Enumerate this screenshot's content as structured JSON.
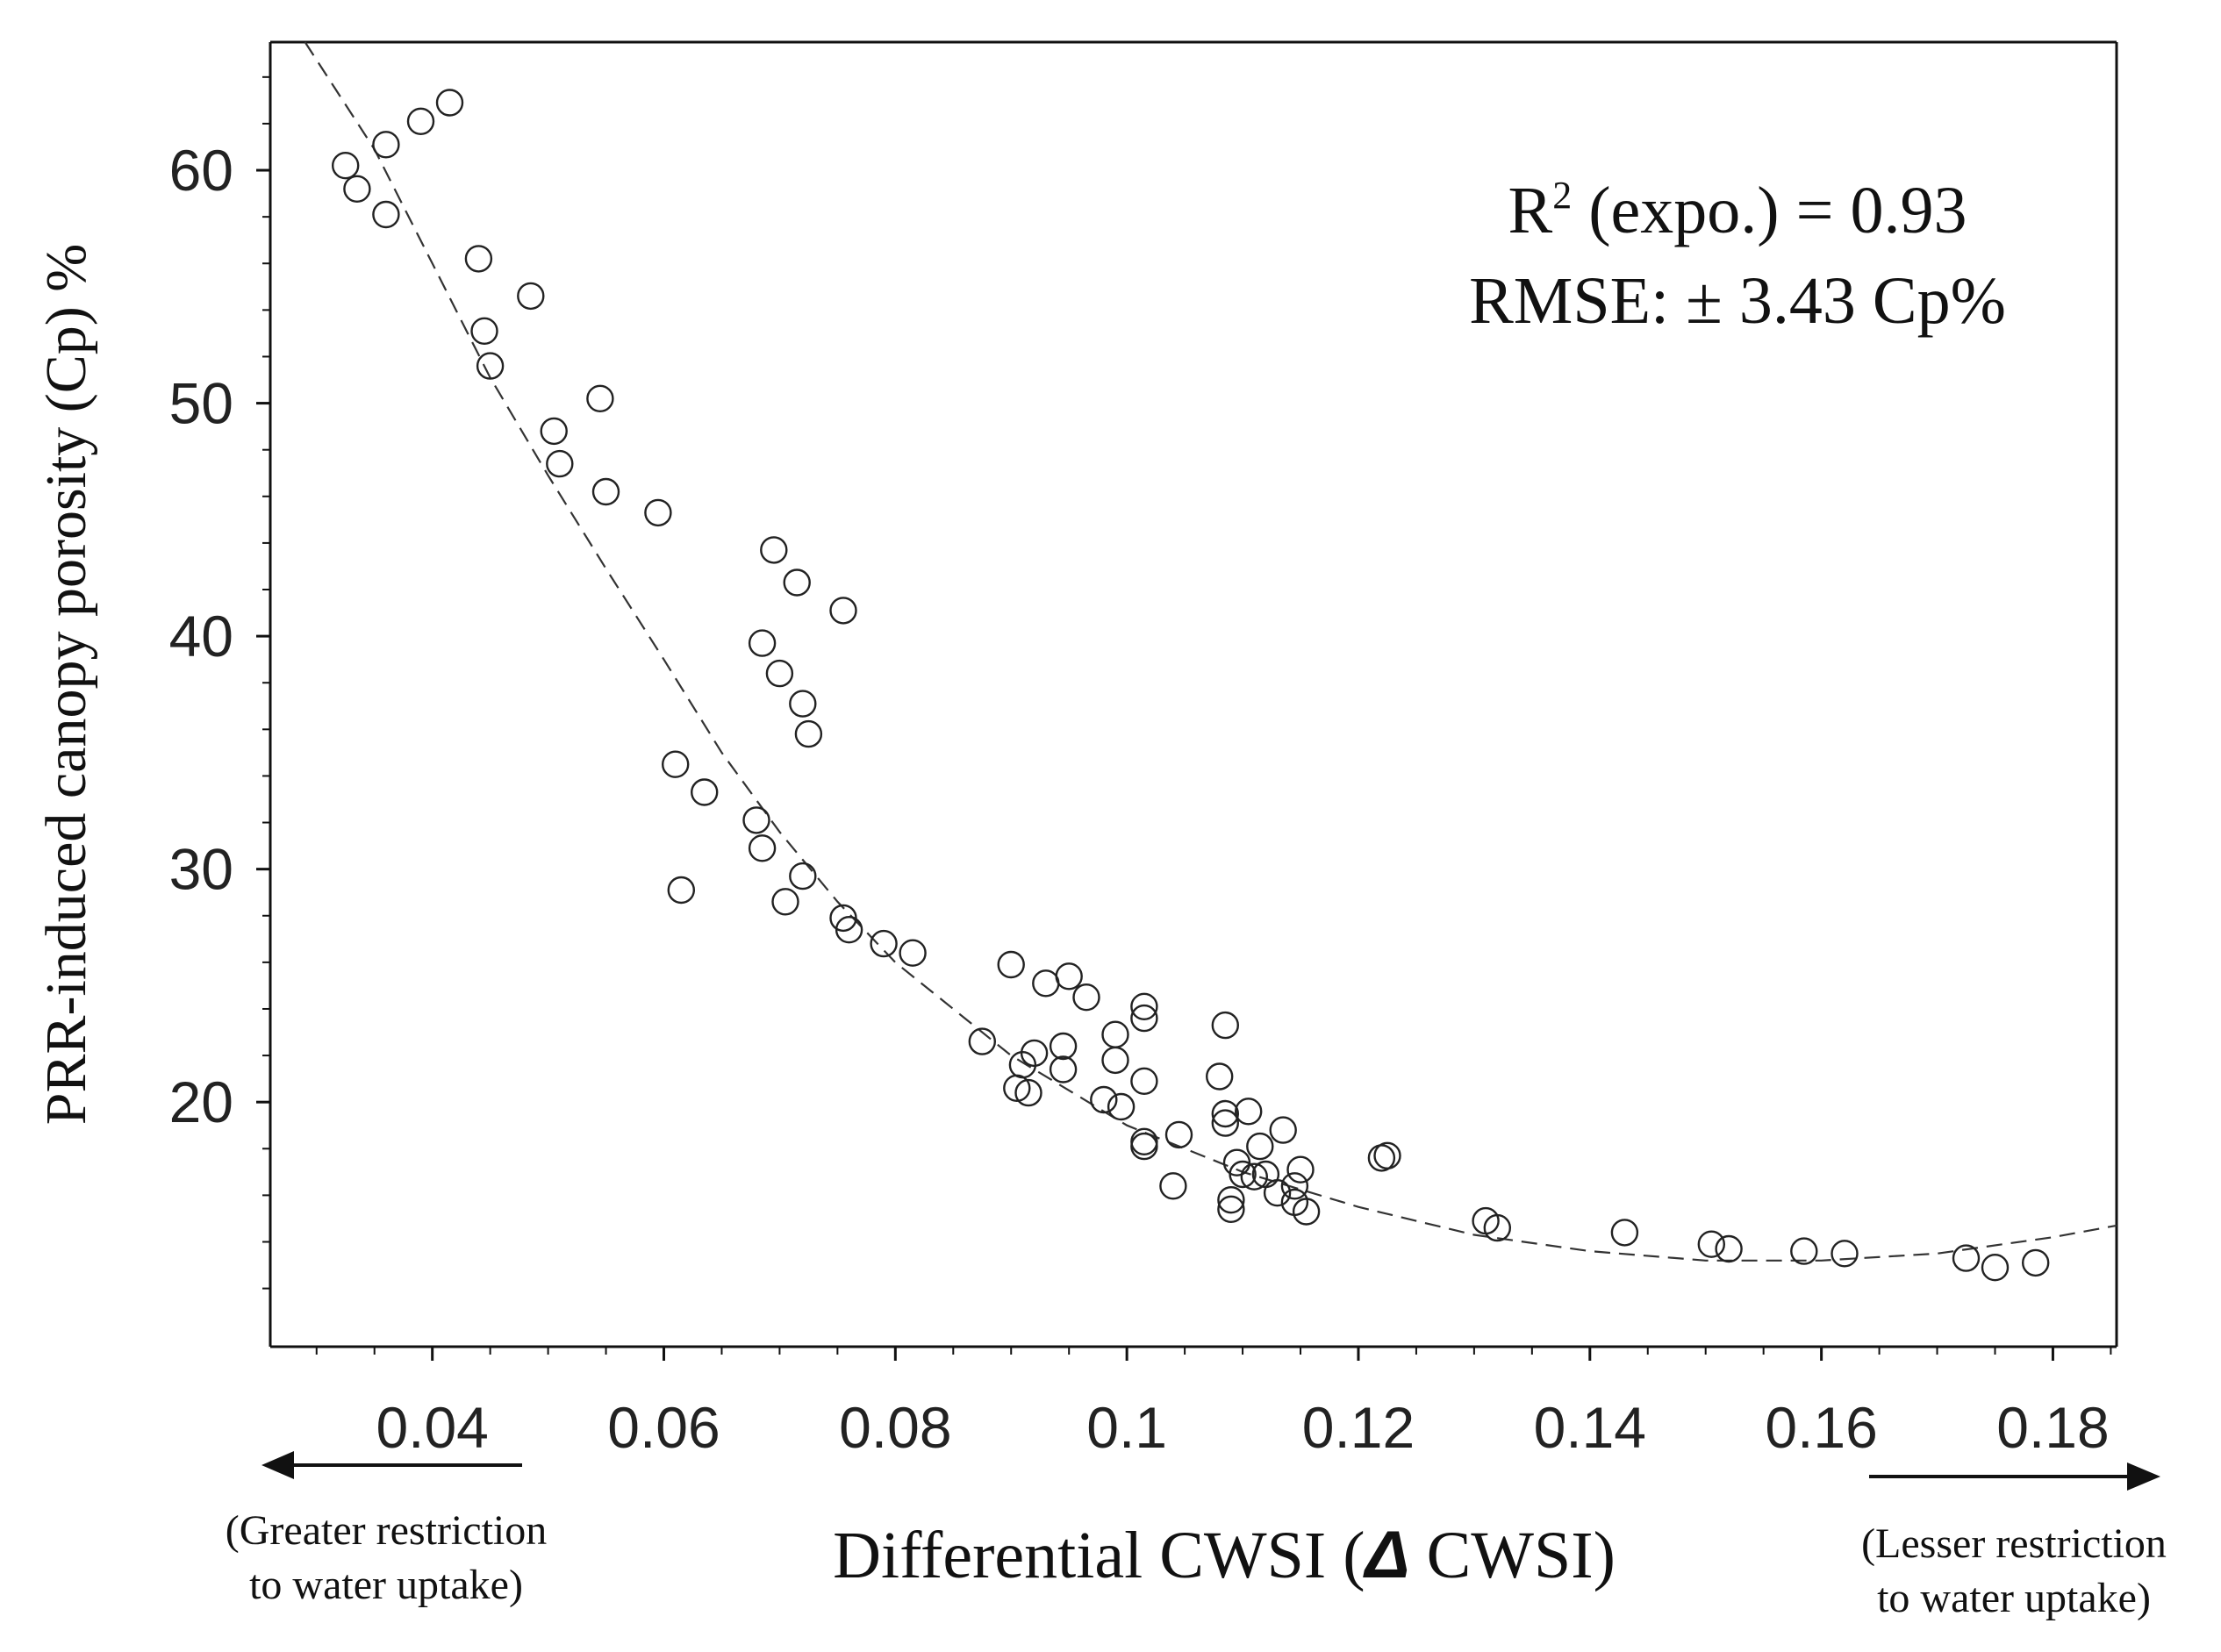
{
  "chart_data": {
    "type": "scatter",
    "title": "",
    "xlabel_prefix": "Differential CWSI (",
    "xlabel_symbol": "Δ",
    "xlabel_suffix": " CWSI)",
    "ylabel": "PRR-induced canopy porosity (Cp) %",
    "xlim": [
      0.026,
      0.1855
    ],
    "ylim": [
      9.5,
      65.5
    ],
    "xticks": [
      0.04,
      0.06,
      0.08,
      0.1,
      0.12,
      0.14,
      0.16,
      0.18
    ],
    "xtick_labels": [
      "0.04",
      "0.06",
      "0.08",
      "0.1",
      "0.12",
      "0.14",
      "0.16",
      "0.18"
    ],
    "yticks": [
      20,
      30,
      40,
      50,
      60
    ],
    "ytick_labels": [
      "20",
      "30",
      "40",
      "50",
      "60"
    ],
    "grid": false,
    "annotations": {
      "r2_base": "R",
      "r2_sup": "2",
      "r2_rest": " (expo.) = 0.93",
      "rmse": "RMSE: ± 3.43 Cp%",
      "left_note_line1": "(Greater restriction",
      "left_note_line2": "to water uptake)",
      "right_note_line1": "(Lesser restriction",
      "right_note_line2": "to water uptake)"
    },
    "fit_curve": {
      "type": "dashed",
      "x": [
        0.029,
        0.035,
        0.04,
        0.045,
        0.05,
        0.055,
        0.06,
        0.065,
        0.07,
        0.075,
        0.08,
        0.09,
        0.1,
        0.11,
        0.12,
        0.13,
        0.14,
        0.15,
        0.16,
        0.17,
        0.18,
        0.1855
      ],
      "y": [
        67.0,
        60.9,
        56.0,
        51.1,
        46.9,
        42.9,
        39.0,
        35.0,
        31.6,
        28.6,
        26.0,
        22.0,
        19.0,
        17.0,
        15.5,
        14.3,
        13.6,
        13.2,
        13.2,
        13.5,
        14.2,
        14.7
      ]
    },
    "series": [
      {
        "name": "observations",
        "marker": "open-circle",
        "x": [
          0.0325,
          0.0335,
          0.036,
          0.036,
          0.039,
          0.0415,
          0.044,
          0.0445,
          0.045,
          0.0485,
          0.0505,
          0.051,
          0.0545,
          0.055,
          0.0595,
          0.061,
          0.0615,
          0.0635,
          0.068,
          0.0685,
          0.0685,
          0.0695,
          0.07,
          0.0705,
          0.0715,
          0.072,
          0.072,
          0.0725,
          0.0755,
          0.0755,
          0.076,
          0.079,
          0.0815,
          0.0875,
          0.09,
          0.0905,
          0.091,
          0.0915,
          0.092,
          0.093,
          0.0945,
          0.0945,
          0.095,
          0.0965,
          0.098,
          0.099,
          0.099,
          0.0995,
          0.1015,
          0.1015,
          0.1015,
          0.1015,
          0.1015,
          0.104,
          0.1045,
          0.108,
          0.1085,
          0.1085,
          0.1085,
          0.109,
          0.109,
          0.1095,
          0.11,
          0.1105,
          0.111,
          0.1115,
          0.112,
          0.113,
          0.1135,
          0.1145,
          0.1145,
          0.115,
          0.1155,
          0.122,
          0.1225,
          0.131,
          0.132,
          0.143,
          0.1505,
          0.152,
          0.1585,
          0.162,
          0.1725,
          0.175,
          0.1785
        ],
        "y": [
          60.2,
          59.2,
          61.1,
          58.1,
          62.1,
          62.9,
          56.2,
          53.1,
          51.6,
          54.6,
          48.8,
          47.4,
          50.2,
          46.2,
          45.3,
          34.5,
          29.1,
          33.3,
          32.1,
          30.9,
          39.7,
          43.7,
          38.4,
          28.6,
          42.3,
          37.1,
          29.7,
          35.8,
          41.1,
          27.9,
          27.4,
          26.8,
          26.4,
          22.6,
          25.9,
          20.6,
          21.6,
          20.4,
          22.1,
          25.1,
          22.4,
          21.4,
          25.4,
          24.5,
          20.1,
          22.9,
          21.8,
          19.8,
          24.1,
          23.6,
          20.9,
          18.3,
          18.1,
          16.4,
          18.6,
          21.1,
          23.3,
          19.5,
          19.1,
          15.4,
          15.8,
          17.4,
          16.9,
          19.6,
          16.8,
          18.1,
          16.9,
          16.1,
          18.8,
          16.4,
          15.7,
          17.1,
          15.3,
          17.6,
          17.7,
          14.9,
          14.6,
          14.4,
          13.9,
          13.7,
          13.6,
          13.5,
          13.3,
          12.9,
          13.1
        ]
      }
    ]
  }
}
